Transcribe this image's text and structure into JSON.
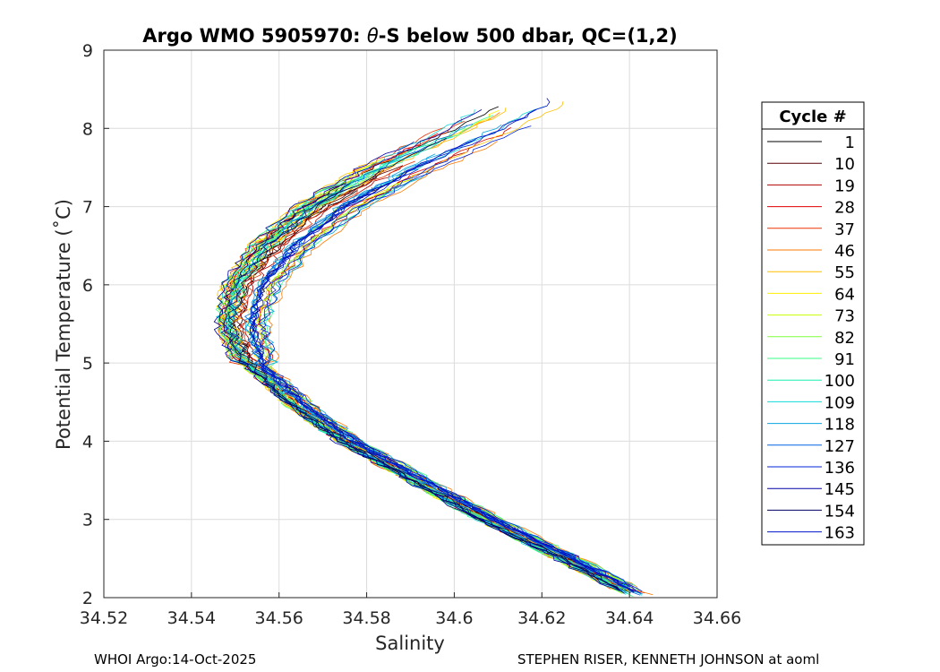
{
  "chart_data": {
    "type": "line",
    "title_prefix": "Argo WMO 5905970: ",
    "title_theta": "θ",
    "title_suffix": "-S below 500 dbar,  QC=(1,2)",
    "xlabel": "Salinity",
    "ylabel": "Potential Temperature (˚C)",
    "xlim": [
      34.52,
      34.66
    ],
    "ylim": [
      2,
      9
    ],
    "grid": true,
    "x_ticks": [
      "34.52",
      "34.54",
      "34.56",
      "34.58",
      "34.6",
      "34.62",
      "34.64",
      "34.66"
    ],
    "y_ticks": [
      "2",
      "3",
      "4",
      "5",
      "6",
      "7",
      "8",
      "9"
    ],
    "mean_profile": {
      "temperature": [
        8.3,
        8.0,
        7.5,
        7.0,
        6.5,
        6.0,
        5.5,
        5.0,
        4.5,
        4.0,
        3.5,
        3.0,
        2.5,
        2.0
      ],
      "salinity": [
        34.617,
        34.607,
        34.588,
        34.572,
        34.561,
        34.554,
        34.5515,
        34.5545,
        34.564,
        34.576,
        34.592,
        34.608,
        34.626,
        34.643
      ]
    },
    "legend": {
      "title": "Cycle #",
      "position": "right",
      "entries": [
        {
          "label": "1",
          "color": "#000000"
        },
        {
          "label": "10",
          "color": "#5c0000"
        },
        {
          "label": "19",
          "color": "#b30000"
        },
        {
          "label": "28",
          "color": "#e00000"
        },
        {
          "label": "37",
          "color": "#ee3300"
        },
        {
          "label": "46",
          "color": "#ff7a00"
        },
        {
          "label": "55",
          "color": "#ffbf00"
        },
        {
          "label": "64",
          "color": "#ffee00"
        },
        {
          "label": "73",
          "color": "#c8ff00"
        },
        {
          "label": "82",
          "color": "#7dff3a"
        },
        {
          "label": "91",
          "color": "#39ff86"
        },
        {
          "label": "100",
          "color": "#17f0b0"
        },
        {
          "label": "109",
          "color": "#10d8d8"
        },
        {
          "label": "118",
          "color": "#0aa4e0"
        },
        {
          "label": "127",
          "color": "#0064e6"
        },
        {
          "label": "136",
          "color": "#0024d8"
        },
        {
          "label": "145",
          "color": "#0000a8"
        },
        {
          "label": "154",
          "color": "#000060"
        },
        {
          "label": "163",
          "color": "#0014c8"
        }
      ]
    }
  },
  "footer": {
    "left": "WHOI Argo:14-Oct-2025",
    "right": "STEPHEN RISER, KENNETH JOHNSON at aoml"
  }
}
